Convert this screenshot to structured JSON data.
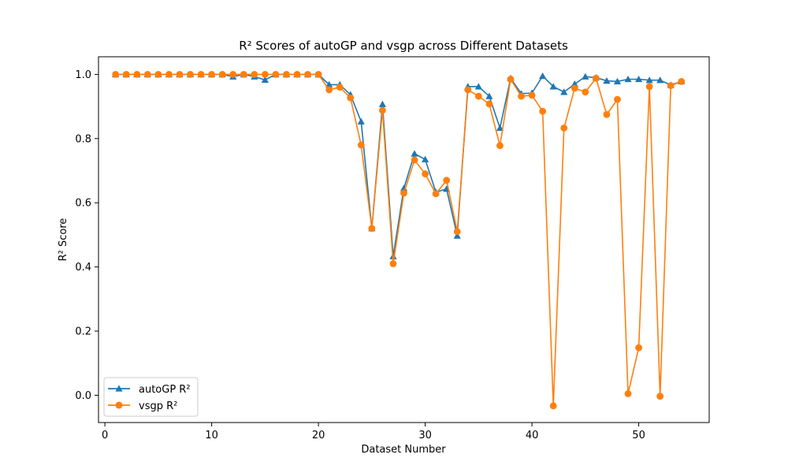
{
  "chart_data": {
    "type": "line",
    "title": "R² Scores of autoGP and vsgp across Different Datasets",
    "xlabel": "Dataset Number",
    "ylabel": "R² Score",
    "xlim": [
      -0.6,
      56.6
    ],
    "ylim": [
      -0.085,
      1.055
    ],
    "xticks": [
      0,
      10,
      20,
      30,
      40,
      50
    ],
    "yticks": [
      0.0,
      0.2,
      0.4,
      0.6,
      0.8,
      1.0
    ],
    "legend_position": "lower-left",
    "grid": false,
    "x": [
      1,
      2,
      3,
      4,
      5,
      6,
      7,
      8,
      9,
      10,
      11,
      12,
      13,
      14,
      15,
      16,
      17,
      18,
      19,
      20,
      21,
      22,
      23,
      24,
      25,
      26,
      27,
      28,
      29,
      30,
      31,
      32,
      33,
      34,
      35,
      36,
      37,
      38,
      39,
      40,
      41,
      42,
      43,
      44,
      45,
      46,
      47,
      48,
      49,
      50,
      51,
      52,
      53,
      54
    ],
    "series": [
      {
        "name": "autoGP R²",
        "color": "#1f77b4",
        "marker": "triangle",
        "values": [
          1.0,
          1.0,
          1.0,
          1.0,
          1.0,
          1.0,
          1.0,
          1.0,
          1.0,
          1.0,
          1.0,
          0.993,
          1.0,
          0.993,
          0.983,
          1.0,
          1.0,
          1.0,
          1.0,
          1.0,
          0.968,
          0.968,
          0.937,
          0.853,
          0.52,
          0.907,
          0.433,
          0.645,
          0.753,
          0.735,
          0.633,
          0.643,
          0.497,
          0.962,
          0.962,
          0.932,
          0.833,
          0.988,
          0.94,
          0.942,
          0.995,
          0.962,
          0.945,
          0.97,
          0.993,
          0.99,
          0.98,
          0.978,
          0.985,
          0.985,
          0.982,
          0.982,
          0.967,
          0.978
        ]
      },
      {
        "name": "vsgp R²",
        "color": "#ff7f0e",
        "marker": "circle",
        "values": [
          1.0,
          1.0,
          1.0,
          1.0,
          1.0,
          1.0,
          1.0,
          1.0,
          1.0,
          1.0,
          1.0,
          1.0,
          1.0,
          1.0,
          1.0,
          1.0,
          1.0,
          1.0,
          1.0,
          1.0,
          0.952,
          0.96,
          0.927,
          0.78,
          0.52,
          0.888,
          0.41,
          0.63,
          0.733,
          0.69,
          0.628,
          0.67,
          0.51,
          0.952,
          0.932,
          0.908,
          0.778,
          0.985,
          0.932,
          0.935,
          0.885,
          -0.033,
          0.833,
          0.957,
          0.945,
          0.988,
          0.875,
          0.922,
          0.005,
          0.148,
          0.962,
          -0.003,
          0.965,
          0.978
        ]
      }
    ]
  }
}
